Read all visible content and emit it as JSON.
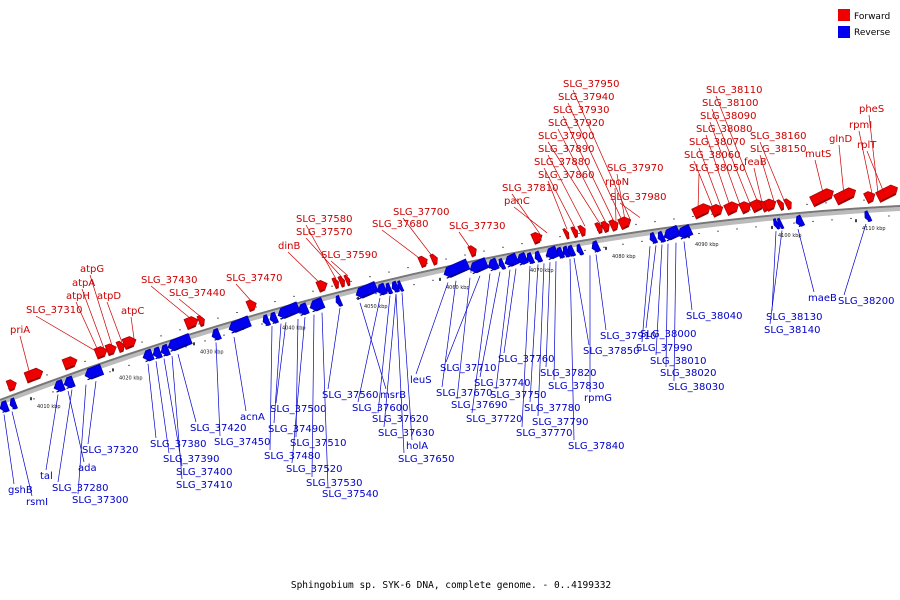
{
  "caption": "Sphingobium sp. SYK-6 DNA, complete genome. - 0..4199332",
  "legend": [
    {
      "label": "Forward",
      "color": "#ee0000"
    },
    {
      "label": "Reverse",
      "color": "#0000ee"
    }
  ],
  "colors": {
    "forward": "#ee0000",
    "forward_text": "#cc0000",
    "reverse": "#0000ee",
    "reverse_text": "#0000cc",
    "backbone": "#777777"
  },
  "scale_labels": [
    "4010 kbp",
    "4020 kbp",
    "4030 kbp",
    "4040 kbp",
    "4050 kbp",
    "4060 kbp",
    "4070 kbp",
    "4080 kbp",
    "4090 kbp",
    "4100 kbp",
    "4110 kbp"
  ],
  "forward_labels": [
    "priA",
    "SLG_37310",
    "atpH",
    "atpA",
    "atpG",
    "atpD",
    "atpC",
    "SLG_37430",
    "SLG_37440",
    "SLG_37470",
    "dinB",
    "SLG_37580",
    "SLG_37570",
    "SLG_37590",
    "SLG_37680",
    "SLG_37700",
    "SLG_37730",
    "SLG_37810",
    "panC",
    "SLG_37860",
    "SLG_37880",
    "SLG_37890",
    "SLG_37900",
    "SLG_37920",
    "SLG_37930",
    "SLG_37940",
    "SLG_37950",
    "rpoN",
    "SLG_37970",
    "SLG_37980",
    "SLG_38050",
    "SLG_38060",
    "SLG_38070",
    "SLG_38080",
    "SLG_38090",
    "SLG_38100",
    "SLG_38110",
    "feaB",
    "SLG_38150",
    "SLG_38160",
    "mutS",
    "glnD",
    "rpmI",
    "pheS",
    "rplT"
  ],
  "reverse_labels": [
    "gshB",
    "rsmI",
    "tal",
    "ada",
    "SLG_37280",
    "SLG_37300",
    "SLG_37320",
    "SLG_37380",
    "SLG_37390",
    "SLG_37400",
    "SLG_37410",
    "SLG_37420",
    "SLG_37450",
    "acnA",
    "SLG_37480",
    "SLG_37490",
    "SLG_37500",
    "SLG_37510",
    "SLG_37520",
    "SLG_37530",
    "SLG_37540",
    "SLG_37560",
    "msrB",
    "SLG_37600",
    "SLG_37620",
    "SLG_37630",
    "holA",
    "SLG_37650",
    "leuS",
    "SLG_37670",
    "SLG_37690",
    "SLG_37710",
    "SLG_37720",
    "SLG_37740",
    "SLG_37750",
    "SLG_37760",
    "SLG_37770",
    "SLG_37780",
    "SLG_37790",
    "SLG_37820",
    "SLG_37830",
    "SLG_37840",
    "SLG_37850",
    "rpmG",
    "SLG_37910",
    "SLG_37990",
    "SLG_38000",
    "SLG_38010",
    "SLG_38020",
    "SLG_38030",
    "SLG_38040",
    "SLG_38130",
    "SLG_38140",
    "maeB",
    "SLG_38200"
  ]
}
